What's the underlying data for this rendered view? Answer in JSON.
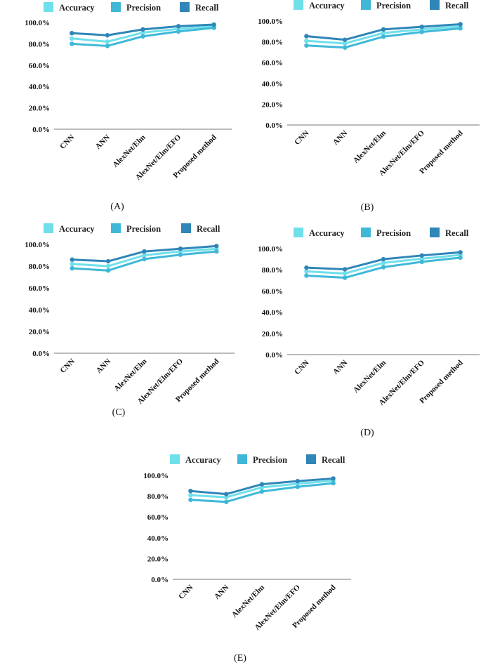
{
  "colors": {
    "accuracy": "#6fe0ea",
    "precision": "#3fb8d8",
    "recall": "#2f86b8",
    "axis": "#777777"
  },
  "legend": [
    "Accuracy",
    "Precision",
    "Recall"
  ],
  "chart_data": [
    {
      "type": "line",
      "panel_label": "(A)",
      "categories": [
        "CNN",
        "ANN",
        "AlexNet/Elm",
        "AlexNet/Elm/EFO",
        "Proposed method"
      ],
      "series": [
        {
          "name": "Accuracy",
          "values": [
            85.0,
            82.0,
            90.5,
            94.0,
            96.5
          ]
        },
        {
          "name": "Precision",
          "values": [
            80.0,
            78.0,
            87.0,
            91.5,
            95.0
          ]
        },
        {
          "name": "Recall",
          "values": [
            90.0,
            88.0,
            93.5,
            96.5,
            98.0
          ]
        }
      ],
      "yticks": [
        "0.0%",
        "20.0%",
        "40.0%",
        "60.0%",
        "80.0%",
        "100.0%"
      ],
      "ylim": [
        0,
        100
      ]
    },
    {
      "type": "line",
      "panel_label": "(B)",
      "categories": [
        "CNN",
        "ANN",
        "AlexNet/Elm",
        "AlexNet/Elm/EFO",
        "Proposed method"
      ],
      "series": [
        {
          "name": "Accuracy",
          "values": [
            81.0,
            78.5,
            88.5,
            92.0,
            95.0
          ]
        },
        {
          "name": "Precision",
          "values": [
            76.5,
            74.5,
            85.0,
            89.5,
            93.0
          ]
        },
        {
          "name": "Recall",
          "values": [
            85.5,
            82.0,
            92.0,
            94.5,
            97.0
          ]
        }
      ],
      "yticks": [
        "0.0%",
        "20.0%",
        "40.0%",
        "60.0%",
        "80.0%",
        "100.0%"
      ],
      "ylim": [
        0,
        100
      ]
    },
    {
      "type": "line",
      "panel_label": "(C)",
      "categories": [
        "CNN",
        "ANN",
        "AlexNet/Elm",
        "AlexNet/Elm/EFO",
        "Proposed method"
      ],
      "series": [
        {
          "name": "Accuracy",
          "values": [
            82.0,
            80.0,
            90.0,
            93.5,
            96.0
          ]
        },
        {
          "name": "Precision",
          "values": [
            78.0,
            76.0,
            86.5,
            90.5,
            93.5
          ]
        },
        {
          "name": "Recall",
          "values": [
            86.0,
            84.5,
            93.5,
            96.0,
            98.5
          ]
        }
      ],
      "yticks": [
        "0.0%",
        "20.0%",
        "40.0%",
        "60.0%",
        "80.0%",
        "100.0%"
      ],
      "ylim": [
        0,
        100
      ]
    },
    {
      "type": "line",
      "panel_label": "(D)",
      "categories": [
        "CNN",
        "ANN",
        "AlexNet/Elm",
        "AlexNet/Elm/EFO",
        "Proposed method"
      ],
      "series": [
        {
          "name": "Accuracy",
          "values": [
            78.5,
            76.5,
            86.5,
            90.5,
            94.0
          ]
        },
        {
          "name": "Precision",
          "values": [
            74.5,
            72.5,
            82.5,
            87.5,
            91.5
          ]
        },
        {
          "name": "Recall",
          "values": [
            82.0,
            80.5,
            90.0,
            93.5,
            96.5
          ]
        }
      ],
      "yticks": [
        "0.0%",
        "20.0%",
        "40.0%",
        "60.0%",
        "80.0%",
        "100.0%"
      ],
      "ylim": [
        0,
        100
      ]
    },
    {
      "type": "line",
      "panel_label": "(E)",
      "categories": [
        "CNN",
        "ANN",
        "AlexNet/Elm",
        "AlexNet/Elm/EFO",
        "Proposed method"
      ],
      "series": [
        {
          "name": "Accuracy",
          "values": [
            81.0,
            79.0,
            88.5,
            92.0,
            95.0
          ]
        },
        {
          "name": "Precision",
          "values": [
            76.5,
            74.5,
            84.5,
            89.0,
            92.5
          ]
        },
        {
          "name": "Recall",
          "values": [
            85.0,
            82.0,
            91.5,
            94.5,
            97.0
          ]
        }
      ],
      "yticks": [
        "0.0%",
        "20.0%",
        "40.0%",
        "60.0%",
        "80.0%",
        "100.0%"
      ],
      "ylim": [
        0,
        100
      ]
    }
  ]
}
